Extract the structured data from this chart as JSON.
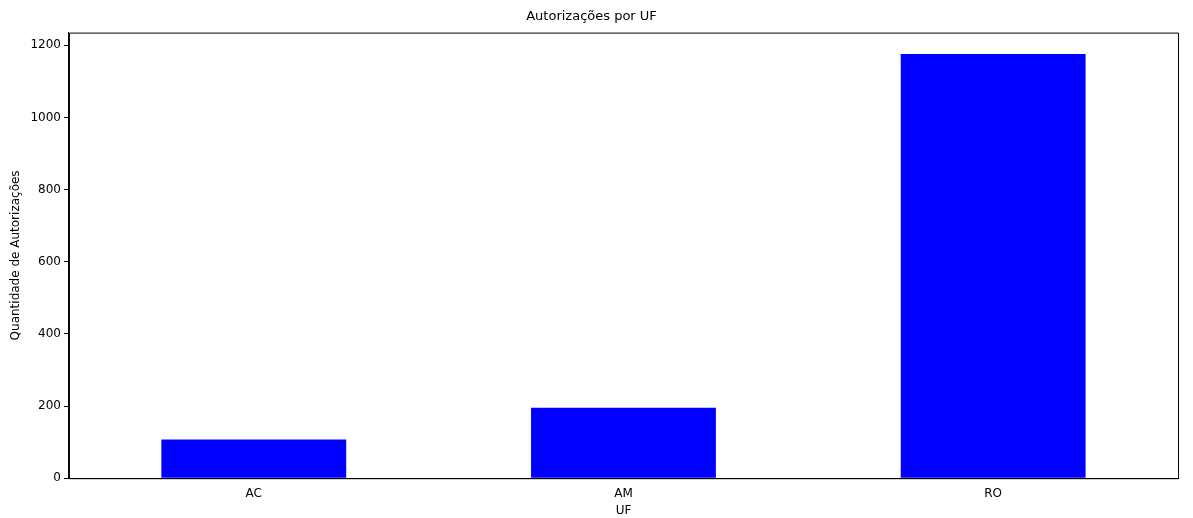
{
  "chart_data": {
    "type": "bar",
    "title": "Autorizações por UF",
    "xlabel": "UF",
    "ylabel": "Quantidade de Autorizações",
    "categories": [
      "AC",
      "AM",
      "RO"
    ],
    "values": [
      107,
      195,
      1176
    ],
    "color": "#0000ff",
    "ylim": [
      0,
      1235
    ],
    "yticks": [
      0,
      200,
      400,
      600,
      800,
      1000,
      1200
    ],
    "grid": false,
    "legend": false
  }
}
